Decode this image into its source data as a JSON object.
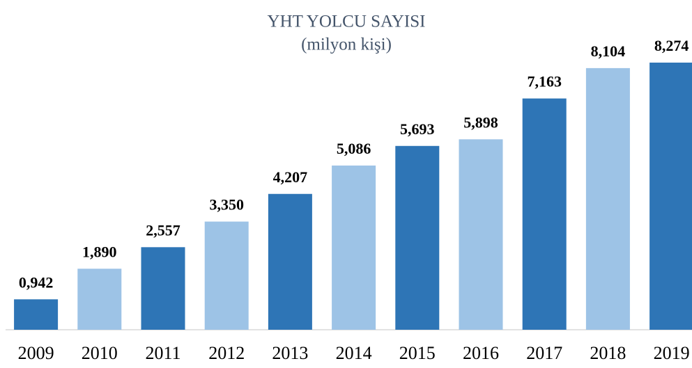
{
  "chart_data": {
    "type": "bar",
    "title": "YHT YOLCU SAYISI",
    "subtitle": "(milyon kişi)",
    "categories": [
      "2009",
      "2010",
      "2011",
      "2012",
      "2013",
      "2014",
      "2015",
      "2016",
      "2017",
      "2018",
      "2019"
    ],
    "values": [
      0.942,
      1.89,
      2.557,
      3.35,
      4.207,
      5.086,
      5.693,
      5.898,
      7.163,
      8.104,
      8.274
    ],
    "value_labels": [
      "0,942",
      "1,890",
      "2,557",
      "3,350",
      "4,207",
      "5,086",
      "5,693",
      "5,898",
      "7,163",
      "8,104",
      "8,274"
    ],
    "colors": [
      "#2e75b6",
      "#9dc3e6",
      "#2e75b6",
      "#9dc3e6",
      "#2e75b6",
      "#9dc3e6",
      "#2e75b6",
      "#9dc3e6",
      "#2e75b6",
      "#9dc3e6",
      "#2e75b6"
    ],
    "grid": false
  }
}
